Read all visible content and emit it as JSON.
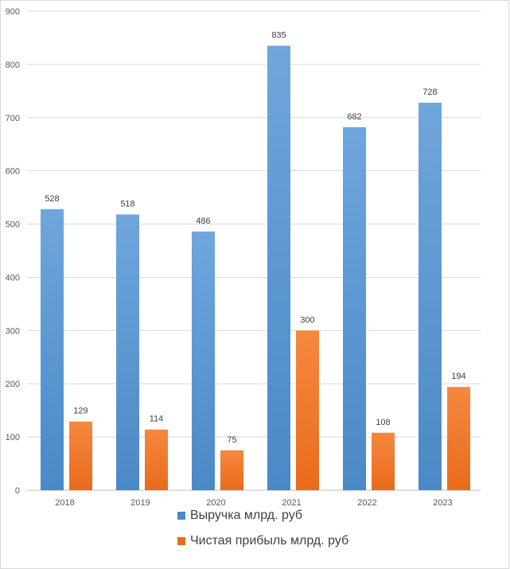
{
  "chart_data": {
    "type": "bar",
    "categories": [
      "2018",
      "2019",
      "2020",
      "2021",
      "2022",
      "2023"
    ],
    "series": [
      {
        "name": "Выручка млрд. руб",
        "values": [
          528,
          518,
          486,
          835,
          682,
          728
        ],
        "color_top": "#6fa6dc",
        "color_bottom": "#4a89c7"
      },
      {
        "name": "Чистая прибыль млрд. руб",
        "values": [
          129,
          114,
          75,
          300,
          108,
          194
        ],
        "color_top": "#f5883f",
        "color_bottom": "#e96b1c"
      }
    ],
    "title": "",
    "xlabel": "",
    "ylabel": "",
    "ylim": [
      0,
      900
    ],
    "yticks": [
      "0",
      "100",
      "200",
      "300",
      "400",
      "500",
      "600",
      "700",
      "800",
      "900"
    ],
    "grid": true,
    "legend": "bottom"
  }
}
